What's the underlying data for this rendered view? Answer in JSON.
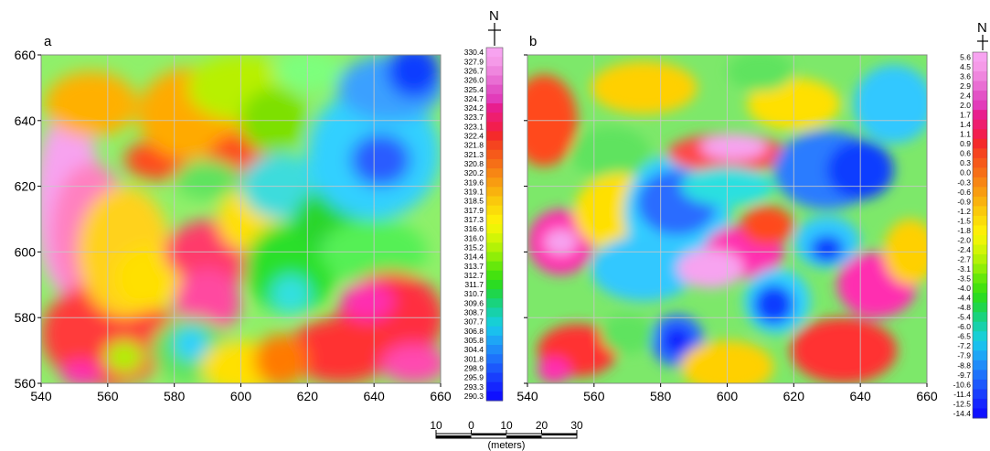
{
  "north_label": "N",
  "panels": [
    {
      "id": "a",
      "label": "a",
      "x_ticks": [
        "540",
        "560",
        "580",
        "600",
        "620",
        "640",
        "660"
      ],
      "y_ticks": [
        "660",
        "640",
        "620",
        "600",
        "580",
        "560"
      ],
      "legend_values": [
        "330.4",
        "327.9",
        "326.7",
        "326.0",
        "325.4",
        "324.7",
        "324.2",
        "323.7",
        "323.1",
        "322.4",
        "321.8",
        "321.3",
        "320.8",
        "320.2",
        "319.6",
        "319.1",
        "318.5",
        "317.9",
        "317.3",
        "316.6",
        "316.0",
        "315.2",
        "314.4",
        "313.7",
        "312.7",
        "311.7",
        "310.7",
        "309.6",
        "308.7",
        "307.7",
        "306.8",
        "305.8",
        "304.4",
        "301.8",
        "298.9",
        "295.9",
        "293.3",
        "290.3"
      ],
      "blobs": [
        {
          "x": 548,
          "y": 615,
          "rx": 10,
          "ry": 28,
          "c": "#f7a3f0"
        },
        {
          "x": 555,
          "y": 605,
          "rx": 12,
          "ry": 22,
          "c": "#ff80c0"
        },
        {
          "x": 560,
          "y": 575,
          "rx": 20,
          "ry": 16,
          "c": "#ff3b3b"
        },
        {
          "x": 552,
          "y": 563,
          "rx": 6,
          "ry": 4,
          "c": "#ff2fb0"
        },
        {
          "x": 565,
          "y": 600,
          "rx": 14,
          "ry": 20,
          "c": "#ffd21a"
        },
        {
          "x": 555,
          "y": 645,
          "rx": 14,
          "ry": 10,
          "c": "#ffb000"
        },
        {
          "x": 575,
          "y": 628,
          "rx": 10,
          "ry": 6,
          "c": "#ff4a1a"
        },
        {
          "x": 572,
          "y": 592,
          "rx": 10,
          "ry": 10,
          "c": "#ffe000"
        },
        {
          "x": 585,
          "y": 642,
          "rx": 16,
          "ry": 14,
          "c": "#ffaa00"
        },
        {
          "x": 593,
          "y": 600,
          "rx": 16,
          "ry": 10,
          "c": "#ff3b6b"
        },
        {
          "x": 590,
          "y": 585,
          "rx": 10,
          "ry": 10,
          "c": "#ff4aa0"
        },
        {
          "x": 600,
          "y": 628,
          "rx": 10,
          "ry": 8,
          "c": "#ff4a1a"
        },
        {
          "x": 590,
          "y": 622,
          "rx": 10,
          "ry": 6,
          "c": "#5fe35f"
        },
        {
          "x": 603,
          "y": 610,
          "rx": 10,
          "ry": 10,
          "c": "#ffe000"
        },
        {
          "x": 600,
          "y": 650,
          "rx": 16,
          "ry": 10,
          "c": "#b8f000"
        },
        {
          "x": 610,
          "y": 640,
          "rx": 10,
          "ry": 10,
          "c": "#7de000"
        },
        {
          "x": 615,
          "y": 595,
          "rx": 14,
          "ry": 14,
          "c": "#2be02b"
        },
        {
          "x": 615,
          "y": 587,
          "rx": 6,
          "ry": 6,
          "c": "#33e0e0"
        },
        {
          "x": 612,
          "y": 620,
          "rx": 12,
          "ry": 10,
          "c": "#3cdcdc"
        },
        {
          "x": 630,
          "y": 610,
          "rx": 14,
          "ry": 10,
          "c": "#2bd52b"
        },
        {
          "x": 630,
          "y": 601,
          "rx": 6,
          "ry": 5,
          "c": "#3a7bff"
        },
        {
          "x": 640,
          "y": 630,
          "rx": 20,
          "ry": 20,
          "c": "#33d0ff"
        },
        {
          "x": 642,
          "y": 628,
          "rx": 9,
          "ry": 8,
          "c": "#2a5cff"
        },
        {
          "x": 645,
          "y": 650,
          "rx": 16,
          "ry": 10,
          "c": "#3aa0ff"
        },
        {
          "x": 652,
          "y": 655,
          "rx": 8,
          "ry": 8,
          "c": "#0b3cff"
        },
        {
          "x": 620,
          "y": 655,
          "rx": 10,
          "ry": 6,
          "c": "#7dff7d"
        },
        {
          "x": 640,
          "y": 600,
          "rx": 16,
          "ry": 10,
          "c": "#55f055"
        },
        {
          "x": 645,
          "y": 580,
          "rx": 16,
          "ry": 14,
          "c": "#ff2f3f"
        },
        {
          "x": 638,
          "y": 585,
          "rx": 8,
          "ry": 6,
          "c": "#ff2fb0"
        },
        {
          "x": 630,
          "y": 570,
          "rx": 16,
          "ry": 10,
          "c": "#ff3030"
        },
        {
          "x": 652,
          "y": 566,
          "rx": 10,
          "ry": 6,
          "c": "#ff4ab0"
        },
        {
          "x": 585,
          "y": 570,
          "rx": 12,
          "ry": 10,
          "c": "#5fe35f"
        },
        {
          "x": 585,
          "y": 572,
          "rx": 5,
          "ry": 5,
          "c": "#2ad0ff"
        },
        {
          "x": 600,
          "y": 565,
          "rx": 12,
          "ry": 8,
          "c": "#ffe000"
        },
        {
          "x": 612,
          "y": 567,
          "rx": 8,
          "ry": 8,
          "c": "#ff7a00"
        },
        {
          "x": 565,
          "y": 568,
          "rx": 6,
          "ry": 5,
          "c": "#b0f000"
        }
      ]
    },
    {
      "id": "b",
      "label": "b",
      "x_ticks": [
        "540",
        "560",
        "580",
        "600",
        "620",
        "640",
        "660"
      ],
      "y_ticks": [
        "660",
        "640",
        "620",
        "600",
        "580",
        "560"
      ],
      "legend_values": [
        "5.6",
        "4.5",
        "3.6",
        "2.9",
        "2.4",
        "2.0",
        "1.7",
        "1.4",
        "1.1",
        "0.9",
        "0.6",
        "0.3",
        "0.0",
        "-0.3",
        "-0.6",
        "-0.9",
        "-1.2",
        "-1.5",
        "-1.8",
        "-2.0",
        "-2.4",
        "-2.7",
        "-3.1",
        "-3.5",
        "-4.0",
        "-4.4",
        "-4.8",
        "-5.4",
        "-6.0",
        "-6.5",
        "-7.2",
        "-7.9",
        "-8.8",
        "-9.7",
        "-10.6",
        "-11.4",
        "-12.5",
        "-14.4"
      ],
      "blobs": [
        {
          "x": 545,
          "y": 640,
          "rx": 10,
          "ry": 14,
          "c": "#ff4a1a"
        },
        {
          "x": 550,
          "y": 603,
          "rx": 10,
          "ry": 10,
          "c": "#ff2fb0"
        },
        {
          "x": 550,
          "y": 603,
          "rx": 5,
          "ry": 4,
          "c": "#f7a3f0"
        },
        {
          "x": 565,
          "y": 630,
          "rx": 12,
          "ry": 8,
          "c": "#5fe35f"
        },
        {
          "x": 568,
          "y": 612,
          "rx": 14,
          "ry": 12,
          "c": "#ffe000"
        },
        {
          "x": 575,
          "y": 650,
          "rx": 16,
          "ry": 8,
          "c": "#ffd000"
        },
        {
          "x": 585,
          "y": 612,
          "rx": 16,
          "ry": 18,
          "c": "#33d0ff"
        },
        {
          "x": 585,
          "y": 615,
          "rx": 12,
          "ry": 10,
          "c": "#2a6cff"
        },
        {
          "x": 575,
          "y": 595,
          "rx": 16,
          "ry": 10,
          "c": "#33c8ff"
        },
        {
          "x": 600,
          "y": 630,
          "rx": 18,
          "ry": 6,
          "c": "#ff4a4a"
        },
        {
          "x": 602,
          "y": 632,
          "rx": 10,
          "ry": 4,
          "c": "#f7a3f0"
        },
        {
          "x": 600,
          "y": 620,
          "rx": 14,
          "ry": 6,
          "c": "#2be0e0"
        },
        {
          "x": 605,
          "y": 600,
          "rx": 12,
          "ry": 8,
          "c": "#ff2fb0"
        },
        {
          "x": 612,
          "y": 608,
          "rx": 8,
          "ry": 6,
          "c": "#ff4a1a"
        },
        {
          "x": 595,
          "y": 595,
          "rx": 10,
          "ry": 6,
          "c": "#f7a3f0"
        },
        {
          "x": 615,
          "y": 585,
          "rx": 10,
          "ry": 10,
          "c": "#33d0ff"
        },
        {
          "x": 614,
          "y": 584,
          "rx": 6,
          "ry": 6,
          "c": "#0b3cff"
        },
        {
          "x": 585,
          "y": 573,
          "rx": 8,
          "ry": 8,
          "c": "#2a6cff"
        },
        {
          "x": 585,
          "y": 573,
          "rx": 4,
          "ry": 4,
          "c": "#0b1cff"
        },
        {
          "x": 630,
          "y": 625,
          "rx": 16,
          "ry": 12,
          "c": "#2a7cff"
        },
        {
          "x": 640,
          "y": 625,
          "rx": 10,
          "ry": 9,
          "c": "#0b3cff"
        },
        {
          "x": 630,
          "y": 603,
          "rx": 10,
          "ry": 8,
          "c": "#33c8ff"
        },
        {
          "x": 630,
          "y": 601,
          "rx": 5,
          "ry": 4,
          "c": "#0b3cff"
        },
        {
          "x": 645,
          "y": 590,
          "rx": 12,
          "ry": 10,
          "c": "#ff2fb0"
        },
        {
          "x": 655,
          "y": 600,
          "rx": 8,
          "ry": 10,
          "c": "#ffd000"
        },
        {
          "x": 650,
          "y": 645,
          "rx": 12,
          "ry": 12,
          "c": "#33c8ff"
        },
        {
          "x": 620,
          "y": 645,
          "rx": 14,
          "ry": 8,
          "c": "#ffe000"
        },
        {
          "x": 610,
          "y": 655,
          "rx": 10,
          "ry": 6,
          "c": "#5fe35f"
        },
        {
          "x": 635,
          "y": 570,
          "rx": 16,
          "ry": 10,
          "c": "#ff3030"
        },
        {
          "x": 600,
          "y": 565,
          "rx": 14,
          "ry": 8,
          "c": "#ffd000"
        },
        {
          "x": 555,
          "y": 570,
          "rx": 12,
          "ry": 8,
          "c": "#ff3030"
        },
        {
          "x": 548,
          "y": 564,
          "rx": 5,
          "ry": 4,
          "c": "#ff2fb0"
        },
        {
          "x": 570,
          "y": 575,
          "rx": 8,
          "ry": 6,
          "c": "#5fe35f"
        }
      ]
    }
  ],
  "scale_bar": {
    "labels": [
      "10",
      "0",
      "10",
      "20",
      "30"
    ],
    "units": "(meters)"
  },
  "legend_colors": [
    "#f7a3f0",
    "#f59ae8",
    "#ef86de",
    "#e96ed3",
    "#e353c6",
    "#e23cba",
    "#e81e8e",
    "#ee1e6e",
    "#f21e4e",
    "#f42a2a",
    "#f5441f",
    "#f65a1a",
    "#f66f17",
    "#f78614",
    "#f89c11",
    "#f9b20e",
    "#fac90c",
    "#fbdc0a",
    "#fdee08",
    "#eef506",
    "#d2f506",
    "#b3f206",
    "#8fee08",
    "#66e80b",
    "#44e20f",
    "#2bdc22",
    "#1fd64c",
    "#19d37d",
    "#17d1ab",
    "#17cfd5",
    "#1ac0ee",
    "#1ea6f6",
    "#1f8cf9",
    "#1e72fb",
    "#1c58fc",
    "#193efd",
    "#1526fe",
    "#0f10ff"
  ]
}
